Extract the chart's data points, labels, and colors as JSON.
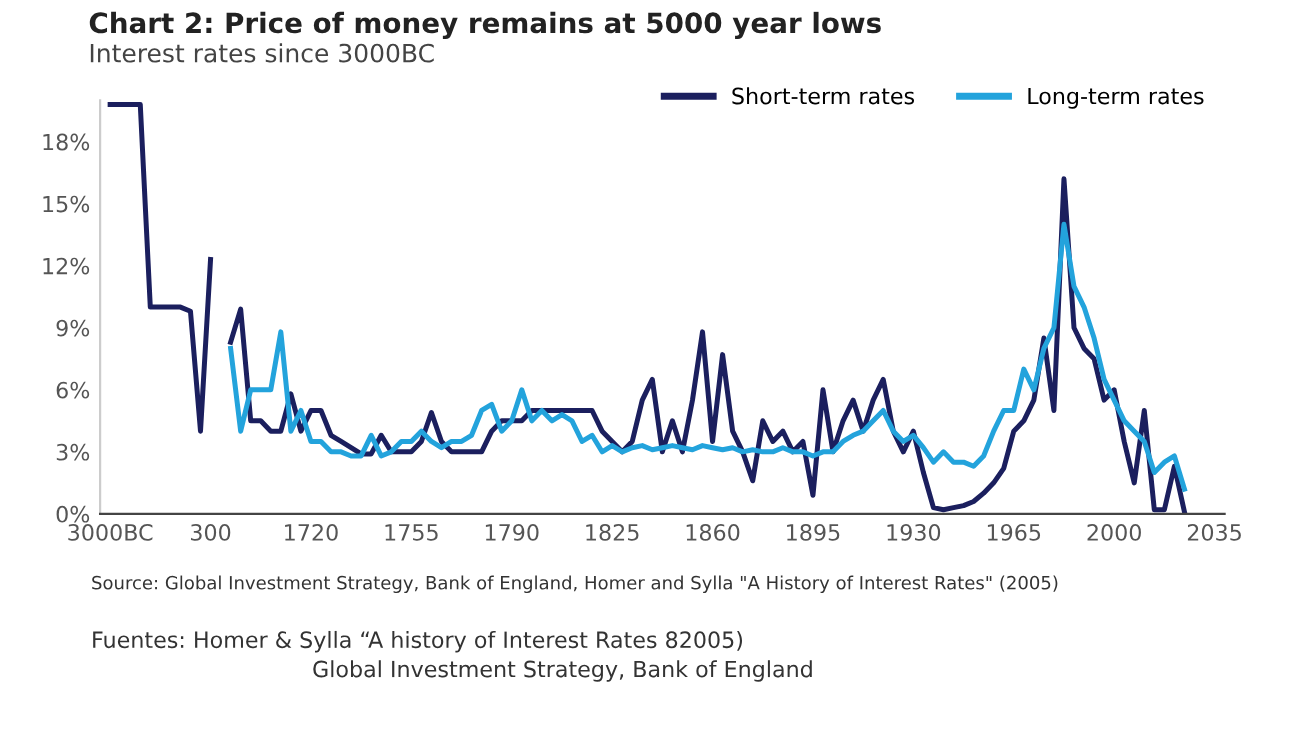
{
  "chart_data": {
    "type": "line",
    "title": "Chart 2: Price of money remains at 5000 year lows",
    "subtitle": "Interest rates since 3000BC",
    "categories": [
      "3000BC",
      null,
      null,
      null,
      null,
      null,
      null,
      null,
      null,
      null,
      "300",
      null,
      null,
      null,
      null,
      null,
      null,
      null,
      null,
      null,
      "1720",
      null,
      null,
      null,
      null,
      null,
      null,
      null,
      null,
      null,
      "1755",
      null,
      null,
      null,
      null,
      null,
      null,
      null,
      null,
      null,
      "1790",
      null,
      null,
      null,
      null,
      null,
      null,
      null,
      null,
      null,
      "1825",
      null,
      null,
      null,
      null,
      null,
      null,
      null,
      null,
      null,
      "1860",
      null,
      null,
      null,
      null,
      null,
      null,
      null,
      null,
      null,
      "1895",
      null,
      null,
      null,
      null,
      null,
      null,
      null,
      null,
      null,
      "1930",
      null,
      null,
      null,
      null,
      null,
      null,
      null,
      null,
      null,
      "1965",
      null,
      null,
      null,
      null,
      null,
      null,
      null,
      null,
      null,
      "2000",
      null,
      null,
      null,
      null,
      null,
      null,
      null,
      null,
      null,
      "2035"
    ],
    "series": [
      {
        "name": "Short-term rates",
        "color": "#1b1f5e",
        "values": [
          19.8,
          19.8,
          19.8,
          19.8,
          10,
          10,
          10,
          10,
          9.8,
          4.0,
          12.3,
          null,
          8.3,
          9.9,
          4.5,
          4.5,
          4.0,
          4.0,
          5.8,
          4.0,
          5.0,
          5.0,
          3.8,
          3.5,
          3.2,
          2.9,
          2.9,
          3.8,
          3.0,
          3.0,
          3.0,
          3.5,
          4.9,
          3.5,
          3.0,
          3.0,
          3.0,
          3.0,
          4.0,
          4.5,
          4.5,
          4.5,
          5.0,
          5.0,
          5.0,
          5.0,
          5.0,
          5.0,
          5.0,
          4.0,
          3.5,
          3.0,
          3.5,
          5.5,
          6.5,
          3.0,
          4.5,
          3.0,
          5.5,
          8.8,
          3.5,
          7.7,
          4.0,
          3.0,
          1.6,
          4.5,
          3.5,
          4.0,
          3.0,
          3.5,
          0.9,
          6.0,
          3.0,
          4.5,
          5.5,
          4.0,
          5.5,
          6.5,
          4.0,
          3.0,
          4.0,
          2.0,
          0.3,
          0.2,
          0.3,
          0.4,
          0.6,
          1.0,
          1.5,
          2.2,
          4.0,
          4.5,
          5.5,
          8.5,
          5.0,
          16.2,
          9.0,
          8.0,
          7.5,
          5.5,
          6.0,
          3.5,
          1.5,
          5.0,
          0.2,
          0.2,
          2.3,
          0.1,
          null,
          null,
          null
        ]
      },
      {
        "name": "Long-term rates",
        "color": "#23a3dc",
        "values": [
          null,
          null,
          null,
          null,
          null,
          null,
          null,
          null,
          null,
          null,
          null,
          null,
          8.0,
          4.0,
          6.0,
          6.0,
          6.0,
          8.8,
          4.0,
          5.0,
          3.5,
          3.5,
          3.0,
          3.0,
          2.8,
          2.8,
          3.8,
          2.8,
          3.0,
          3.5,
          3.5,
          4.0,
          3.5,
          3.2,
          3.5,
          3.5,
          3.8,
          5.0,
          5.3,
          4.0,
          4.5,
          6.0,
          4.5,
          5.0,
          4.5,
          4.8,
          4.5,
          3.5,
          3.8,
          3.0,
          3.3,
          3.0,
          3.2,
          3.3,
          3.1,
          3.2,
          3.3,
          3.2,
          3.1,
          3.3,
          3.2,
          3.1,
          3.2,
          3.0,
          3.1,
          3.0,
          3.0,
          3.2,
          3.0,
          3.0,
          2.8,
          3.0,
          3.0,
          3.5,
          3.8,
          4.0,
          4.5,
          5.0,
          4.0,
          3.5,
          3.8,
          3.2,
          2.5,
          3.0,
          2.5,
          2.5,
          2.3,
          2.8,
          4.0,
          5.0,
          5.0,
          7.0,
          6.0,
          8.0,
          9.0,
          14.0,
          11.0,
          10.0,
          8.5,
          6.5,
          5.5,
          4.5,
          4.0,
          3.5,
          2.0,
          2.5,
          2.8,
          1.2,
          null,
          null,
          null
        ]
      }
    ],
    "ylim": [
      0,
      20
    ],
    "yticks": [
      {
        "value": 0,
        "label": "0%"
      },
      {
        "value": 3,
        "label": "3%"
      },
      {
        "value": 6,
        "label": "6%"
      },
      {
        "value": 9,
        "label": "9%"
      },
      {
        "value": 12,
        "label": "12%"
      },
      {
        "value": 15,
        "label": "15%"
      },
      {
        "value": 18,
        "label": "18%"
      }
    ],
    "grid": false,
    "legend": "top right",
    "annotations": [
      "Source: Global Investment Strategy, Bank of England, Homer and Sylla \"A History of Interest Rates\" (2005)",
      "Fuentes: Homer & Sylla “A history of Interest Rates 82005)",
      "Global Investment Strategy, Bank of England"
    ]
  }
}
